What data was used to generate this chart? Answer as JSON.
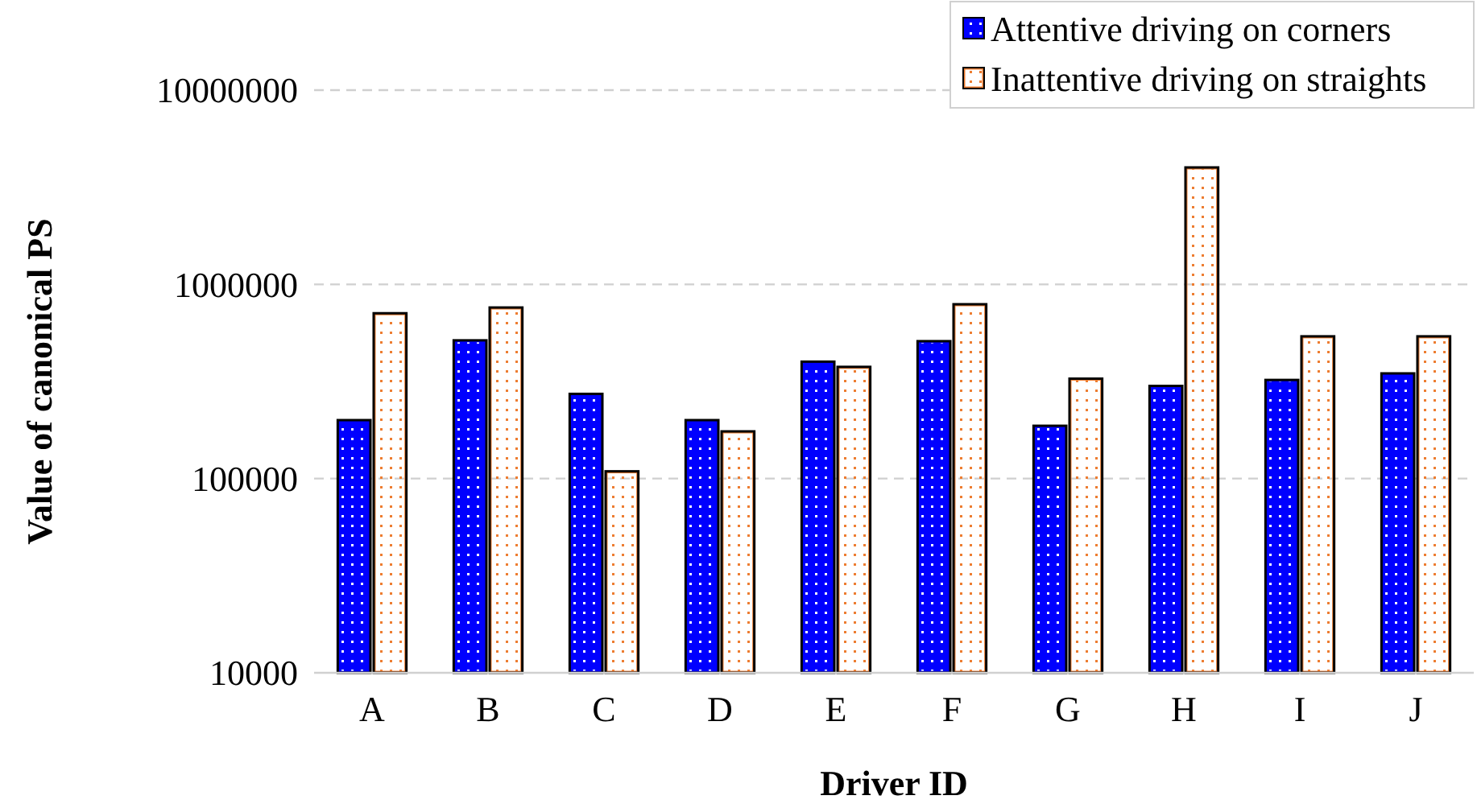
{
  "chart_data": {
    "type": "bar",
    "xlabel": "Driver ID",
    "ylabel": "Value of canonical PS",
    "categories": [
      "A",
      "B",
      "C",
      "D",
      "E",
      "F",
      "G",
      "H",
      "I",
      "J"
    ],
    "series": [
      {
        "name": "Attentive driving on corners",
        "color": "#0000ff",
        "values": [
          200000,
          515000,
          273000,
          200000,
          400000,
          510000,
          187000,
          300000,
          322000,
          348000
        ]
      },
      {
        "name": "Inattentive driving on straights",
        "color": "#ed7d31",
        "values": [
          710000,
          760000,
          109000,
          175000,
          376000,
          790000,
          327000,
          4000000,
          540000,
          540000
        ]
      }
    ],
    "log": true,
    "ylim": [
      10000,
      10000000
    ],
    "yticks": [
      10000,
      100000,
      1000000,
      10000000
    ],
    "grid": "y",
    "legend": "top right"
  }
}
